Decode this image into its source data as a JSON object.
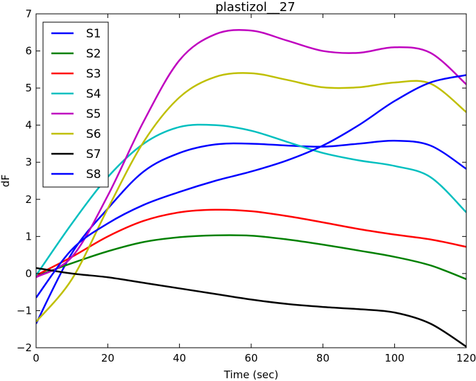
{
  "chart_data": {
    "type": "line",
    "title": "plastizol__27",
    "xlabel": "Time (sec)",
    "ylabel": "dF",
    "xlim": [
      0,
      120
    ],
    "ylim": [
      -2,
      7
    ],
    "xticks": [
      0,
      20,
      40,
      60,
      80,
      100,
      120
    ],
    "yticks": [
      -2,
      -1,
      0,
      1,
      2,
      3,
      4,
      5,
      6,
      7
    ],
    "xtick_labels": [
      "0",
      "20",
      "40",
      "60",
      "80",
      "100",
      "120"
    ],
    "ytick_labels": [
      "−2",
      "−1",
      "0",
      "1",
      "2",
      "3",
      "4",
      "5",
      "6",
      "7"
    ],
    "grid": false,
    "legend_position": "top-left",
    "x": [
      0,
      10,
      20,
      30,
      40,
      50,
      60,
      70,
      80,
      90,
      100,
      110,
      120
    ],
    "series": [
      {
        "name": "S1",
        "color": "#0000ff",
        "values": [
          -1.35,
          0.55,
          1.75,
          2.75,
          3.25,
          3.48,
          3.5,
          3.45,
          3.42,
          3.5,
          3.58,
          3.45,
          2.82
        ]
      },
      {
        "name": "S2",
        "color": "#008000",
        "values": [
          -0.07,
          0.28,
          0.6,
          0.85,
          0.98,
          1.03,
          1.02,
          0.92,
          0.78,
          0.62,
          0.45,
          0.22,
          -0.15
        ]
      },
      {
        "name": "S3",
        "color": "#ff0000",
        "values": [
          -0.05,
          0.45,
          1.0,
          1.42,
          1.65,
          1.72,
          1.68,
          1.55,
          1.38,
          1.2,
          1.05,
          0.92,
          0.72
        ]
      },
      {
        "name": "S4",
        "color": "#00bfbf",
        "values": [
          -0.05,
          1.35,
          2.6,
          3.5,
          3.95,
          4.0,
          3.85,
          3.55,
          3.25,
          3.05,
          2.9,
          2.6,
          1.65
        ]
      },
      {
        "name": "S5",
        "color": "#bf00bf",
        "values": [
          -0.1,
          0.45,
          2.1,
          4.1,
          5.75,
          6.45,
          6.55,
          6.28,
          6.0,
          5.95,
          6.1,
          5.95,
          5.1
        ]
      },
      {
        "name": "S6",
        "color": "#bfbf00",
        "values": [
          -1.3,
          -0.15,
          1.75,
          3.55,
          4.75,
          5.3,
          5.4,
          5.22,
          5.02,
          5.02,
          5.15,
          5.12,
          4.35
        ]
      },
      {
        "name": "S7",
        "color": "#000000",
        "values": [
          0.15,
          0.0,
          -0.1,
          -0.25,
          -0.4,
          -0.55,
          -0.7,
          -0.82,
          -0.9,
          -0.96,
          -1.05,
          -1.35,
          -1.97
        ]
      },
      {
        "name": "S8",
        "color": "#0000ff",
        "values": [
          -0.65,
          0.65,
          1.35,
          1.85,
          2.2,
          2.5,
          2.75,
          3.05,
          3.45,
          4.0,
          4.65,
          5.15,
          5.35
        ]
      }
    ]
  }
}
